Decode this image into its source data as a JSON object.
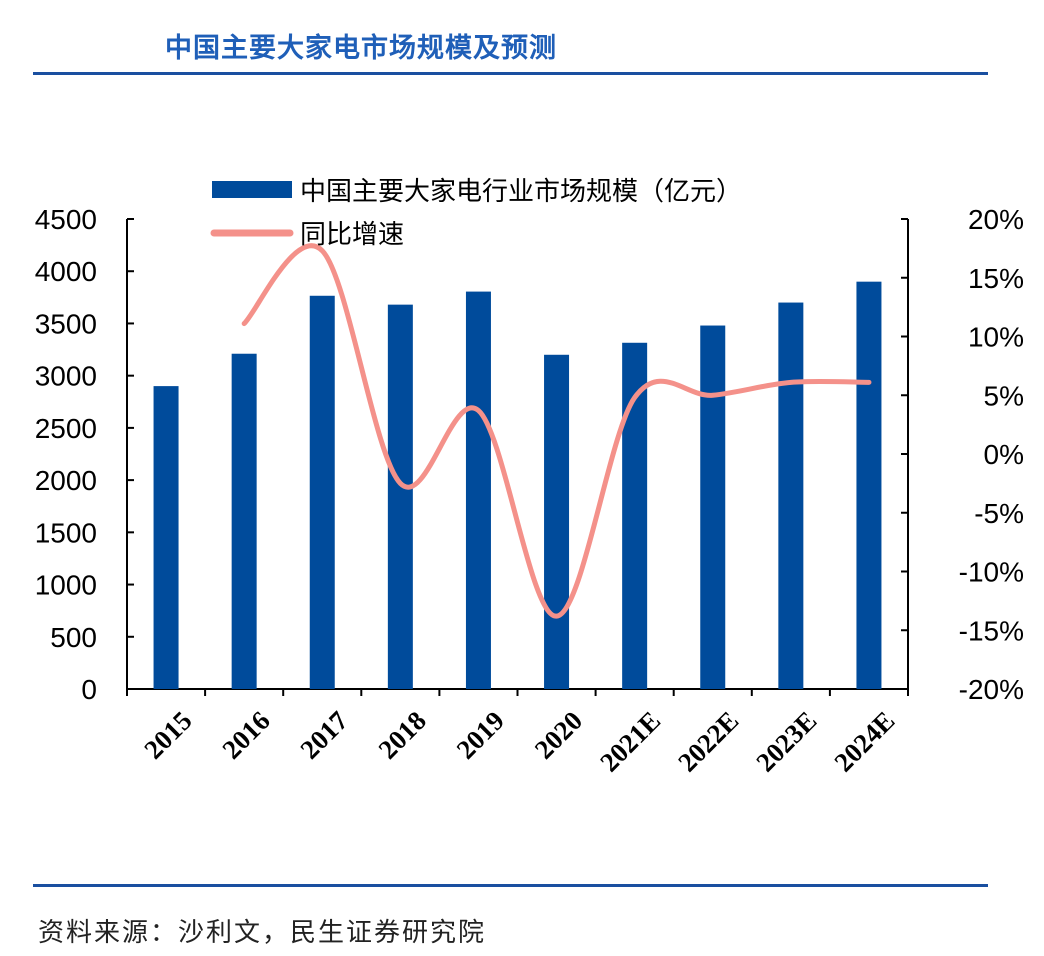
{
  "title": "中国主要大家电市场规模及预测",
  "source": "资料来源：沙利文，民生证券研究院",
  "chart_data": {
    "type": "bar+line",
    "categories": [
      "2015",
      "2016",
      "2017",
      "2018",
      "2019",
      "2020",
      "2021E",
      "2022E",
      "2023E",
      "2024E"
    ],
    "series": [
      {
        "name": "中国主要大家电行业市场规模（亿元）",
        "type": "bar",
        "axis": "left",
        "color": "#004b9b",
        "values": [
          2900,
          3210,
          3765,
          3680,
          3805,
          3200,
          3315,
          3480,
          3700,
          3900
        ]
      },
      {
        "name": "同比增速",
        "type": "line",
        "axis": "right",
        "color": "#f4918a",
        "values": [
          null,
          11.1,
          17.3,
          -2.5,
          3.7,
          -13.8,
          4.8,
          5.0,
          6.1,
          6.1
        ]
      }
    ],
    "left_axis": {
      "range": [
        0,
        4500
      ],
      "ticks": [
        "0",
        "500",
        "1000",
        "1500",
        "2000",
        "2500",
        "3000",
        "3500",
        "4000",
        "4500"
      ]
    },
    "right_axis": {
      "range": [
        -20,
        20
      ],
      "unit": "%",
      "ticks": [
        "-20%",
        "-15%",
        "-10%",
        "-5%",
        "0%",
        "5%",
        "10%",
        "15%",
        "20%"
      ]
    },
    "grid": false,
    "legend": "top-left"
  }
}
